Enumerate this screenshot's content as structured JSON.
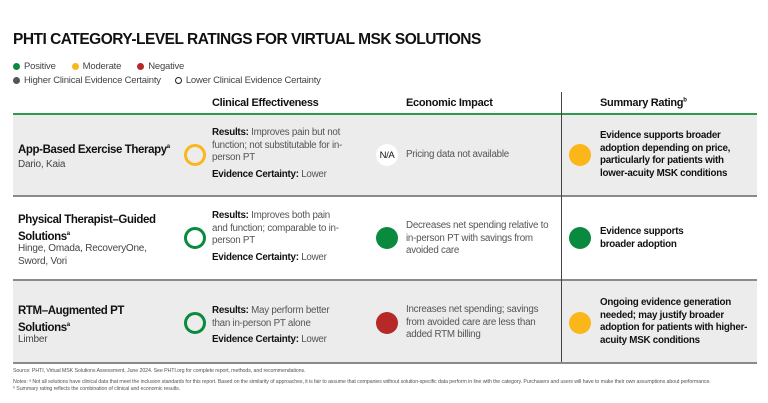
{
  "title": "PHTI CATEGORY-LEVEL RATINGS FOR VIRTUAL MSK SOLUTIONS",
  "legend": {
    "positive": "Positive",
    "moderate": "Moderate",
    "negative": "Negative",
    "higher": "Higher Clinical Evidence Certainty",
    "lower": "Lower Clinical Evidence Certainty"
  },
  "colors": {
    "positive": "#0a8a3e",
    "moderate": "#fbb61a",
    "negative": "#b52a26",
    "accent_line": "#2e9a4c"
  },
  "headers": {
    "clinical": "Clinical Effectiveness",
    "economic": "Economic Impact",
    "summary": "Summary Rating",
    "summary_sup": "b"
  },
  "rows": [
    {
      "name": "App-Based Exercise Therapy",
      "sup": "a",
      "companies": "Dario, Kaia",
      "clinical_rating": "moderate",
      "clinical_certainty_marker": "lower",
      "results_label": "Results:",
      "results": "Improves pain but not function; not substitutable for in-person PT",
      "certainty_label": "Evidence Certainty:",
      "certainty": "Lower",
      "economic_rating": "N/A",
      "economic": "Pricing data not available",
      "summary_rating": "moderate",
      "summary": "Evidence supports broader adoption depending on price, particularly for patients with lower-acuity MSK conditions"
    },
    {
      "name": "Physical Therapist–Guided Solutions",
      "sup": "a",
      "companies": "Hinge, Omada, RecoveryOne, Sword, Vori",
      "clinical_rating": "positive",
      "clinical_certainty_marker": "lower",
      "results_label": "Results:",
      "results": "Improves both pain and function; comparable to in-person PT",
      "certainty_label": "Evidence Certainty:",
      "certainty": "Lower",
      "economic_rating": "positive",
      "economic": "Decreases net spending relative to in-person PT with savings from avoided care",
      "summary_rating": "positive",
      "summary": "Evidence supports broader adoption"
    },
    {
      "name": "RTM–Augmented PT Solutions",
      "sup": "a",
      "companies": "Limber",
      "clinical_rating": "positive",
      "clinical_certainty_marker": "lower",
      "results_label": "Results:",
      "results": "May perform better than in-person PT alone",
      "certainty_label": "Evidence Certainty:",
      "certainty": "Lower",
      "economic_rating": "negative",
      "economic": "Increases net spending; savings from avoided care are less than added RTM billing",
      "summary_rating": "moderate",
      "summary": "Ongoing evidence generation needed; may justify broader adoption for patients with higher-acuity MSK conditions"
    }
  ],
  "footer": {
    "source": "Source: PHTI, Virtual MSK Solutions Assessment, June 2024. See PHTI.org for complete report, methods, and recommendations.",
    "notes": "Notes: ᵃ Not all solutions have clinical data that meet the inclusion standards for this report. Based on the similarity of approaches, it is fair to assume that companies without solution-specific data perform in line with the category. Purchasers and users will have to make their own assumptions about performance.",
    "note_b": "ᵇ Summary rating reflects the combination of clinical and economic results."
  }
}
